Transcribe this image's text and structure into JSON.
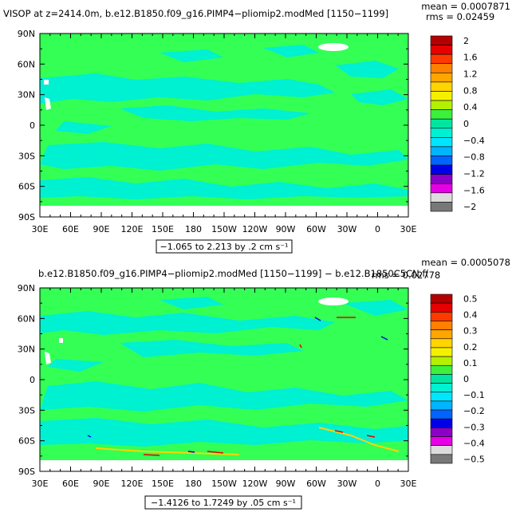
{
  "chart_data": [
    {
      "type": "heatmap",
      "title": "VISOP at z=2414.0m, b.e12.B1850.f09_g16.PIMP4−pliomip2.modMed [1150−1199]",
      "mean_text": "mean = 0.0007871",
      "rms_text": "rms = 0.02459",
      "info_box": "−1.065 to 2.213 by .2 cm s⁻¹",
      "x_ticks": [
        "30E",
        "60E",
        "90E",
        "120E",
        "150E",
        "180",
        "150W",
        "120W",
        "90W",
        "60W",
        "30W",
        "0",
        "30E"
      ],
      "y_ticks": [
        "90N",
        "60N",
        "30N",
        "0",
        "30S",
        "60S",
        "90S"
      ],
      "colorbar_labels": [
        "2",
        "1.6",
        "1.2",
        "0.8",
        "0.4",
        "0",
        "−0.4",
        "−0.8",
        "−1.2",
        "−1.6",
        "−2"
      ],
      "colorbar_colors": [
        "#b40000",
        "#e60000",
        "#ff3a00",
        "#ff8000",
        "#ffa500",
        "#ffd400",
        "#f5f000",
        "#b4f000",
        "#3cf03c",
        "#00e6a0",
        "#00f0d2",
        "#00e6ff",
        "#00b4ff",
        "#0064ff",
        "#0000e6",
        "#8c00c8",
        "#e600e6",
        "#dcdcdc",
        "#787878"
      ]
    },
    {
      "type": "heatmap",
      "title": "b.e12.B1850.f09_g16.PIMP4−pliomip2.modMed [1150−1199] − b.e12.B1850C5CN.f(",
      "mean_text": "mean = 0.0005078",
      "rms_text": "rms = 0.02778",
      "info_box": "−1.4126 to 1.7249 by .05 cm s⁻¹",
      "x_ticks": [
        "30E",
        "60E",
        "90E",
        "120E",
        "150E",
        "180",
        "150W",
        "120W",
        "90W",
        "60W",
        "30W",
        "0",
        "30E"
      ],
      "y_ticks": [
        "90N",
        "60N",
        "30N",
        "0",
        "30S",
        "60S",
        "90S"
      ],
      "colorbar_labels": [
        "0.5",
        "0.4",
        "0.3",
        "0.2",
        "0.1",
        "0",
        "−0.1",
        "−0.2",
        "−0.3",
        "−0.4",
        "−0.5"
      ],
      "colorbar_colors": [
        "#b40000",
        "#e60000",
        "#ff3a00",
        "#ff8000",
        "#ffa500",
        "#ffd400",
        "#f5f000",
        "#b4f000",
        "#3cf03c",
        "#00e6a0",
        "#00f0d2",
        "#00e6ff",
        "#00b4ff",
        "#0064ff",
        "#0000e6",
        "#8c00c8",
        "#e600e6",
        "#dcdcdc",
        "#787878"
      ]
    }
  ],
  "colors": {
    "field_green": "#33ff55",
    "field_cyan": "#00f0d2",
    "land_white": "#ffffff"
  }
}
